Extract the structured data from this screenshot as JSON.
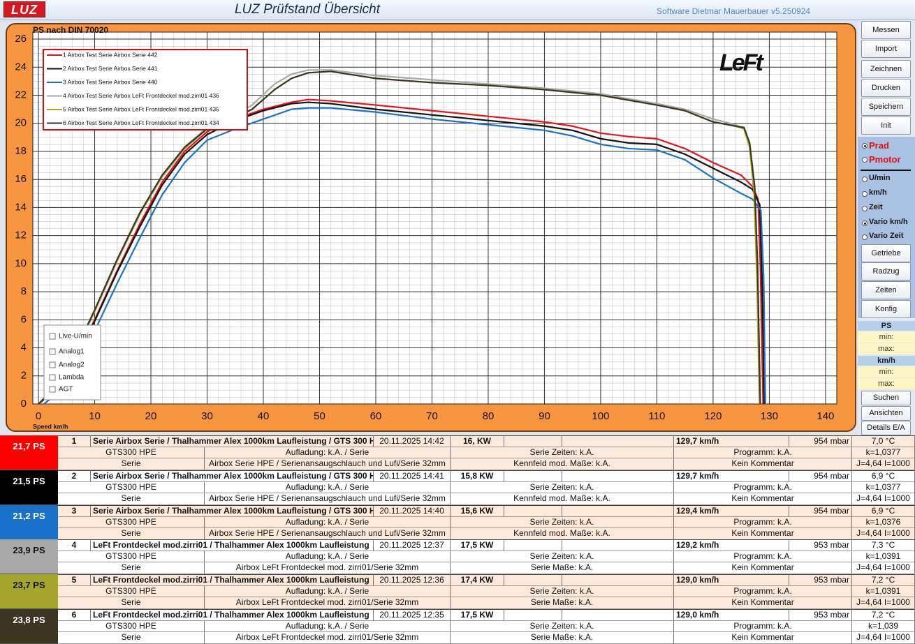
{
  "title_bar": {
    "logo": "LUZ",
    "title": "LUZ Prüfstand  Übersicht",
    "version": "Software Dietmar Mauerbauer v5.250924"
  },
  "chart_data": {
    "type": "line",
    "y_label": "PS nach DIN 70020",
    "x_label": "Speed km/h",
    "logo": "LeFt",
    "xlim": [
      -1,
      142
    ],
    "ylim": [
      0,
      26.5
    ],
    "xticks": [
      0,
      10,
      20,
      30,
      40,
      50,
      60,
      70,
      80,
      90,
      100,
      110,
      120,
      130,
      140
    ],
    "yticks": [
      0,
      2,
      4,
      6,
      8,
      10,
      12,
      14,
      16,
      18,
      20,
      22,
      24,
      26
    ],
    "grid": true,
    "legend": "upper left",
    "series": [
      {
        "name": "1  Airbox Test Serie Airbox Serie 442",
        "color": "#e8131a",
        "x": [
          0,
          3,
          6,
          10,
          14,
          18,
          22,
          26,
          30,
          35,
          40,
          45,
          48,
          52,
          60,
          70,
          80,
          90,
          95,
          100,
          105,
          110,
          115,
          120,
          125,
          127,
          128,
          128.4,
          128.7,
          128.9
        ],
        "values": [
          0,
          1,
          2.8,
          6,
          9.5,
          12.8,
          15.8,
          18,
          19.4,
          20.3,
          21.0,
          21.5,
          21.7,
          21.6,
          21.3,
          20.9,
          20.5,
          20.1,
          19.8,
          19.3,
          19.05,
          18.9,
          18.2,
          17.2,
          16.3,
          15.5,
          14.6,
          10,
          4,
          0
        ]
      },
      {
        "name": "2  Airbox Test Serie Airbox Serie 441",
        "color": "#111111",
        "x": [
          0,
          3,
          6,
          10,
          14,
          18,
          22,
          26,
          30,
          35,
          40,
          45,
          48,
          52,
          60,
          70,
          80,
          90,
          95,
          100,
          105,
          110,
          115,
          120,
          125,
          127,
          128.3,
          128.7,
          129,
          129.1
        ],
        "values": [
          0,
          1,
          2.7,
          5.9,
          9.4,
          12.6,
          15.6,
          17.8,
          19.2,
          20.2,
          20.9,
          21.4,
          21.5,
          21.4,
          21.0,
          20.6,
          20.2,
          19.8,
          19.5,
          18.9,
          18.6,
          18.5,
          17.8,
          16.8,
          15.8,
          15.3,
          14.2,
          9,
          3,
          0
        ]
      },
      {
        "name": "3  Airbox Test Serie Airbox Serie 440",
        "color": "#1a72c8",
        "x": [
          1,
          4,
          7,
          10,
          14,
          18,
          22,
          26,
          30,
          35,
          40,
          45,
          48,
          52,
          60,
          70,
          80,
          90,
          95,
          100,
          105,
          110,
          115,
          120,
          125,
          127,
          128.5,
          129,
          129.2,
          129.3
        ],
        "values": [
          0,
          1,
          2.8,
          5.2,
          8.6,
          11.8,
          14.9,
          17.2,
          18.8,
          19.6,
          20.3,
          21.0,
          21.1,
          21.1,
          20.8,
          20.3,
          19.9,
          19.5,
          19.1,
          18.5,
          18.2,
          18.1,
          17.4,
          16.1,
          15.0,
          14.6,
          13.8,
          9,
          3,
          0
        ]
      },
      {
        "name": "4  Airbox Test Serie Airbox LeFt Frontdeckel mod.zirri01 436",
        "color": "#a8a8a8",
        "x": [
          0,
          3,
          6,
          10,
          14,
          18,
          22,
          26,
          30,
          35,
          38,
          42,
          45,
          48,
          52,
          60,
          70,
          80,
          90,
          100,
          110,
          115,
          120,
          124,
          125.5,
          126.5,
          127.3,
          127.8,
          128.1,
          128.3
        ],
        "values": [
          0,
          1.2,
          3.2,
          6.6,
          10.2,
          13.5,
          16.3,
          18.3,
          19.7,
          20.6,
          21.3,
          22.8,
          23.5,
          23.8,
          23.8,
          23.4,
          23.1,
          22.8,
          22.5,
          22.1,
          21.4,
          21.0,
          20.3,
          19.9,
          19.6,
          18.5,
          15.5,
          10,
          4,
          0
        ]
      },
      {
        "name": "5  Airbox Test Serie Airbox LeFt Frontdeckel mod.zirri01 435",
        "color": "#a3a62a",
        "x": [
          0,
          3,
          6,
          10,
          14,
          18,
          22,
          26,
          30,
          35,
          38,
          42,
          45,
          48,
          52,
          60,
          70,
          80,
          90,
          100,
          110,
          115,
          120,
          124,
          125.5,
          126.5,
          127.3,
          127.8,
          128.1,
          128.3
        ],
        "values": [
          0,
          1.2,
          3.2,
          6.6,
          10.2,
          13.5,
          16.2,
          18.2,
          19.6,
          20.4,
          21.0,
          22.4,
          23.2,
          23.6,
          23.7,
          23.2,
          22.9,
          22.7,
          22.4,
          22.0,
          21.3,
          20.9,
          20.1,
          19.8,
          19.6,
          18.3,
          15,
          9,
          3,
          0
        ]
      },
      {
        "name": "6  Airbox Test Serie Airbox LeFt Frontdeckel mod.zirri01 434",
        "color": "#3c3520",
        "x": [
          0,
          3,
          6,
          10,
          14,
          18,
          22,
          26,
          30,
          35,
          38,
          42,
          45,
          48,
          52,
          60,
          70,
          80,
          90,
          100,
          110,
          115,
          120,
          124,
          125.5,
          126.5,
          127.4,
          127.9,
          128.2,
          128.4
        ],
        "values": [
          0,
          1.2,
          3.3,
          6.7,
          10.3,
          13.6,
          16.3,
          18.3,
          19.6,
          20.4,
          21.0,
          22.4,
          23.2,
          23.6,
          23.7,
          23.2,
          22.9,
          22.7,
          22.4,
          22.0,
          21.3,
          20.9,
          20.1,
          19.8,
          19.7,
          18.6,
          15.5,
          10,
          4,
          0
        ]
      }
    ]
  },
  "overlay_checkboxes": [
    {
      "label": "Live-U/min",
      "checked": false
    },
    {
      "label": "Analog1",
      "checked": false
    },
    {
      "label": "Analog2",
      "checked": false
    },
    {
      "label": "Lambda",
      "checked": false
    },
    {
      "label": "AGT",
      "checked": false
    }
  ],
  "sidebar": {
    "buttons_top": [
      "Messen",
      "Import",
      "Zeichnen",
      "Drucken",
      "Speichern",
      "Init"
    ],
    "radios": [
      {
        "label": "Prad",
        "checked": true,
        "emphasis": true
      },
      {
        "label": "Pmotor",
        "checked": false,
        "emphasis": true
      },
      {
        "label": "U/min",
        "checked": false,
        "emphasis": false
      },
      {
        "label": "km/h",
        "checked": false,
        "emphasis": false
      },
      {
        "label": "Zeit",
        "checked": false,
        "emphasis": false
      },
      {
        "label": "Vario km/h",
        "checked": true,
        "emphasis": false
      },
      {
        "label": "Vario Zeit",
        "checked": false,
        "emphasis": false
      }
    ],
    "buttons_mid": [
      "Getriebe",
      "Radzug",
      "Zeiten",
      "Konfig"
    ],
    "ranges": [
      {
        "title": "PS",
        "min": "min:",
        "max": "max:"
      },
      {
        "title": "km/h",
        "min": "min:",
        "max": "max:"
      }
    ],
    "buttons_bottom": [
      "Suchen",
      "Ansichten",
      "Details E/A"
    ]
  },
  "results": [
    {
      "ps": "21,7 PS",
      "color": "#ff0000",
      "text_color": "#ffffff",
      "no": "1",
      "name": "Serie Airbox Serie / Thalhammer Alex 1000km Laufleistung / GTS 300 H",
      "date": "20.11.2025 14:42",
      "kw": "16,  KW",
      "speed": "129,7 km/h",
      "pressure": "954  mbar",
      "temp": "7,0 °C",
      "engine": "GTS300 HPE",
      "charging": "Aufladung: k.A.  / Serie",
      "times": "Serie  Zeiten: k.A.",
      "program": "Programm: k.A.",
      "k": "k=1,0377",
      "category": "Serie",
      "setup": "Airbox Serie HPE / Serienansaugschlauch und Lufi/Serie 32mm",
      "map": "Kennfeld mod. Maße: k.A.",
      "comment": "Kein Kommentar",
      "ji": "J=4,64 I=1000"
    },
    {
      "ps": "21,5 PS",
      "color": "#000000",
      "text_color": "#ffffff",
      "no": "2",
      "name": "Serie Airbox Serie / Thalhammer Alex 1000km Laufleistung / GTS 300 H",
      "date": "20.11.2025 14:41",
      "kw": "15,8  KW",
      "speed": "129,7 km/h",
      "pressure": "954  mbar",
      "temp": "6,9 °C",
      "engine": "GTS300 HPE",
      "charging": "Aufladung: k.A.  / Serie",
      "times": "Serie  Zeiten: k.A.",
      "program": "Programm: k.A.",
      "k": "k=1,0377",
      "category": "Serie",
      "setup": "Airbox Serie HPE / Serienansaugschlauch und Lufi/Serie 32mm",
      "map": "Kennfeld mod. Maße: k.A.",
      "comment": "Kein Kommentar",
      "ji": "J=4,64 I=1000"
    },
    {
      "ps": "21,2 PS",
      "color": "#1a72c8",
      "text_color": "#ffffff",
      "no": "3",
      "name": "Serie Airbox Serie / Thalhammer Alex 1000km Laufleistung / GTS 300 H",
      "date": "20.11.2025 14:40",
      "kw": "15,6  KW",
      "speed": "129,4 km/h",
      "pressure": "954  mbar",
      "temp": "6,9 °C",
      "engine": "GTS300 HPE",
      "charging": "Aufladung: k.A.  / Serie",
      "times": "Serie  Zeiten: k.A.",
      "program": "Programm: k.A.",
      "k": "k=1,0376",
      "category": "Serie",
      "setup": "Airbox Serie HPE / Serienansaugschlauch und Lufi/Serie 32mm",
      "map": "Kennfeld mod. Maße: k.A.",
      "comment": "Kein Kommentar",
      "ji": "J=4,64 I=1000"
    },
    {
      "ps": "23,9 PS",
      "color": "#a8a8a8",
      "text_color": "#111111",
      "no": "4",
      "name": "LeFt Frontdeckel mod.zirri01 / Thalhammer Alex 1000km Laufleistung",
      "date": "20.11.2025 12:37",
      "kw": "17,5  KW",
      "speed": "129,2 km/h",
      "pressure": "953  mbar",
      "temp": "7,3 °C",
      "engine": "GTS300 HPE",
      "charging": "Aufladung: k.A.  / Serie",
      "times": "Serie  Zeiten: k.A.",
      "program": "Programm: k.A.",
      "k": "k=1,0391",
      "category": "Serie",
      "setup": "Airbox LeFt Frontdeckel mod. zirri01/Serie 32mm",
      "map": "Serie Maße: k.A.",
      "comment": "Kein Kommentar",
      "ji": "J=4,64 I=1000"
    },
    {
      "ps": "23,7 PS",
      "color": "#a3a62a",
      "text_color": "#111111",
      "no": "5",
      "name": "LeFt Frontdeckel mod.zirri01 / Thalhammer Alex 1000km Laufleistung",
      "date": "20.11.2025 12:36",
      "kw": "17,4  KW",
      "speed": "129,0 km/h",
      "pressure": "953  mbar",
      "temp": "7,2 °C",
      "engine": "GTS300 HPE",
      "charging": "Aufladung: k.A.  / Serie",
      "times": "Serie  Zeiten: k.A.",
      "program": "Programm: k.A.",
      "k": "k=1,0391",
      "category": "Serie",
      "setup": "Airbox LeFt Frontdeckel mod. zirri01/Serie 32mm",
      "map": "Serie Maße: k.A.",
      "comment": "Kein Kommentar",
      "ji": "J=4,64 I=1000"
    },
    {
      "ps": "23,8 PS",
      "color": "#3c3520",
      "text_color": "#ffffff",
      "no": "6",
      "name": "LeFt Frontdeckel mod.zirri01 / Thalhammer Alex 1000km Laufleistung",
      "date": "20.11.2025 12:35",
      "kw": "17,5  KW",
      "speed": "129,0 km/h",
      "pressure": "953  mbar",
      "temp": "7,2 °C",
      "engine": "GTS300 HPE",
      "charging": "Aufladung: k.A.  / Serie",
      "times": "Serie  Zeiten: k.A.",
      "program": "Programm: k.A.",
      "k": "k=1,039",
      "category": "Serie",
      "setup": "Airbox LeFt Frontdeckel mod. zirri01/Serie 32mm",
      "map": "Serie Maße: k.A.",
      "comment": "Kein Kommentar",
      "ji": "J=4,64 I=1000"
    }
  ]
}
